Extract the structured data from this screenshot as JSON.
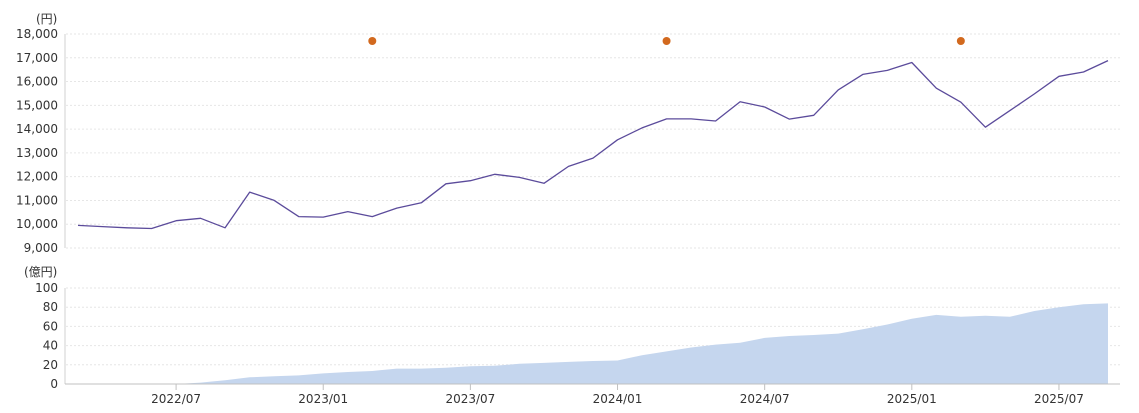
{
  "chart_data": [
    {
      "type": "line",
      "unit_label": "(円)",
      "ylim": [
        9000,
        18000
      ],
      "yticks": [
        "9,000",
        "10,000",
        "11,000",
        "12,000",
        "13,000",
        "14,000",
        "15,000",
        "16,000",
        "17,000",
        "18,000"
      ],
      "series": [
        {
          "name": "price",
          "color": "#5b4b9b",
          "values": [
            9950,
            9900,
            9850,
            9820,
            10150,
            10250,
            9850,
            11350,
            11000,
            10320,
            10300,
            10530,
            10320,
            10680,
            10900,
            11700,
            11830,
            12100,
            11970,
            11720,
            12430,
            12780,
            13550,
            14050,
            14430,
            14430,
            14340,
            15150,
            14930,
            14420,
            14580,
            15650,
            16300,
            16470,
            16800,
            15720,
            15130,
            14080,
            14780,
            15480,
            16220,
            16400,
            16880
          ]
        }
      ],
      "markers": [
        {
          "name": "event",
          "index": 12,
          "color": "#d2691e"
        },
        {
          "name": "event",
          "index": 24,
          "color": "#d2691e"
        },
        {
          "name": "event",
          "index": 36,
          "color": "#d2691e"
        }
      ]
    },
    {
      "type": "area",
      "unit_label": "(億円)",
      "ylim": [
        0,
        100
      ],
      "yticks": [
        "0",
        "20",
        "40",
        "60",
        "80",
        "100"
      ],
      "x_tick_labels": [
        "2022/07",
        "2023/01",
        "2023/07",
        "2024/01",
        "2024/07",
        "2025/01",
        "2025/07"
      ],
      "series": [
        {
          "name": "net_assets",
          "color": "#c5d6ee",
          "values": [
            0,
            0,
            0,
            0,
            0,
            1.5,
            4,
            7,
            8,
            9,
            11,
            12.5,
            13.5,
            16,
            16,
            17,
            18.5,
            19,
            21,
            22,
            23,
            24,
            24.5,
            30,
            34,
            38,
            41,
            43,
            48,
            50,
            51,
            52.5,
            57,
            62,
            68,
            72,
            70,
            71,
            70,
            76,
            80,
            83,
            84
          ]
        }
      ]
    }
  ]
}
